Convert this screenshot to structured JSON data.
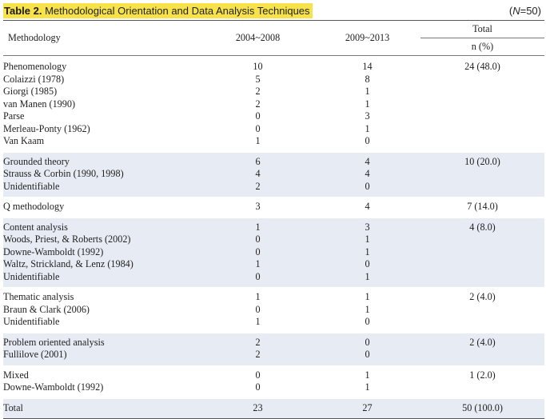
{
  "caption": {
    "table_number": "Table 2.",
    "title": " Methodological Orientation and Data Analysis Techniques",
    "n_prefix": "(",
    "n_var": "N",
    "n_suffix": "=50)"
  },
  "header": {
    "methodology": "Methodology",
    "period1": "2004~2008",
    "period2": "2009~2013",
    "total": "Total",
    "n_pct": "n (%)"
  },
  "groups": [
    {
      "name": "Phenomenology",
      "p1": "10",
      "p2": "14",
      "total": "24 (48.0)",
      "items": [
        {
          "name": "Colaizzi (1978)",
          "p1": "5",
          "p2": "8"
        },
        {
          "name": "Giorgi (1985)",
          "p1": "2",
          "p2": "1"
        },
        {
          "name": "van Manen (1990)",
          "p1": "2",
          "p2": "1"
        },
        {
          "name": "Parse",
          "p1": "0",
          "p2": "3"
        },
        {
          "name": "Merleau-Ponty (1962)",
          "p1": "0",
          "p2": "1"
        },
        {
          "name": "Van Kaam",
          "p1": "1",
          "p2": "0"
        }
      ]
    },
    {
      "name": "Grounded theory",
      "p1": "6",
      "p2": "4",
      "total": "10 (20.0)",
      "items": [
        {
          "name": "Strauss & Corbin (1990, 1998)",
          "p1": "4",
          "p2": "4"
        },
        {
          "name": "Unidentifiable",
          "p1": "2",
          "p2": "0"
        }
      ]
    },
    {
      "name": "Q methodology",
      "p1": "3",
      "p2": "4",
      "total": "7 (14.0)",
      "items": []
    },
    {
      "name": "Content analysis",
      "p1": "1",
      "p2": "3",
      "total": "4 (8.0)",
      "items": [
        {
          "name": "Woods, Priest, & Roberts (2002)",
          "p1": "0",
          "p2": "1"
        },
        {
          "name": "Downe-Wamboldt (1992)",
          "p1": "0",
          "p2": "1"
        },
        {
          "name": "Waltz, Strickland, & Lenz (1984)",
          "p1": "1",
          "p2": "0"
        },
        {
          "name": "Unidentifiable",
          "p1": "0",
          "p2": "1"
        }
      ]
    },
    {
      "name": "Thematic analysis",
      "p1": "1",
      "p2": "1",
      "total": "2 (4.0)",
      "items": [
        {
          "name": "Braun & Clark (2006)",
          "p1": "0",
          "p2": "1"
        },
        {
          "name": "Unidentifiable",
          "p1": "1",
          "p2": "0"
        }
      ]
    },
    {
      "name": "Problem oriented analysis",
      "p1": "2",
      "p2": "0",
      "total": "2 (4.0)",
      "items": [
        {
          "name": "Fullilove (2001)",
          "p1": "2",
          "p2": "0"
        }
      ]
    },
    {
      "name": "Mixed",
      "p1": "0",
      "p2": "1",
      "total": "1 (2.0)",
      "items": [
        {
          "name": "Downe-Wamboldt (1992)",
          "p1": "0",
          "p2": "1"
        }
      ]
    }
  ],
  "total_row": {
    "label": "Total",
    "p1": "23",
    "p2": "27",
    "total": "50 (100.0)"
  }
}
